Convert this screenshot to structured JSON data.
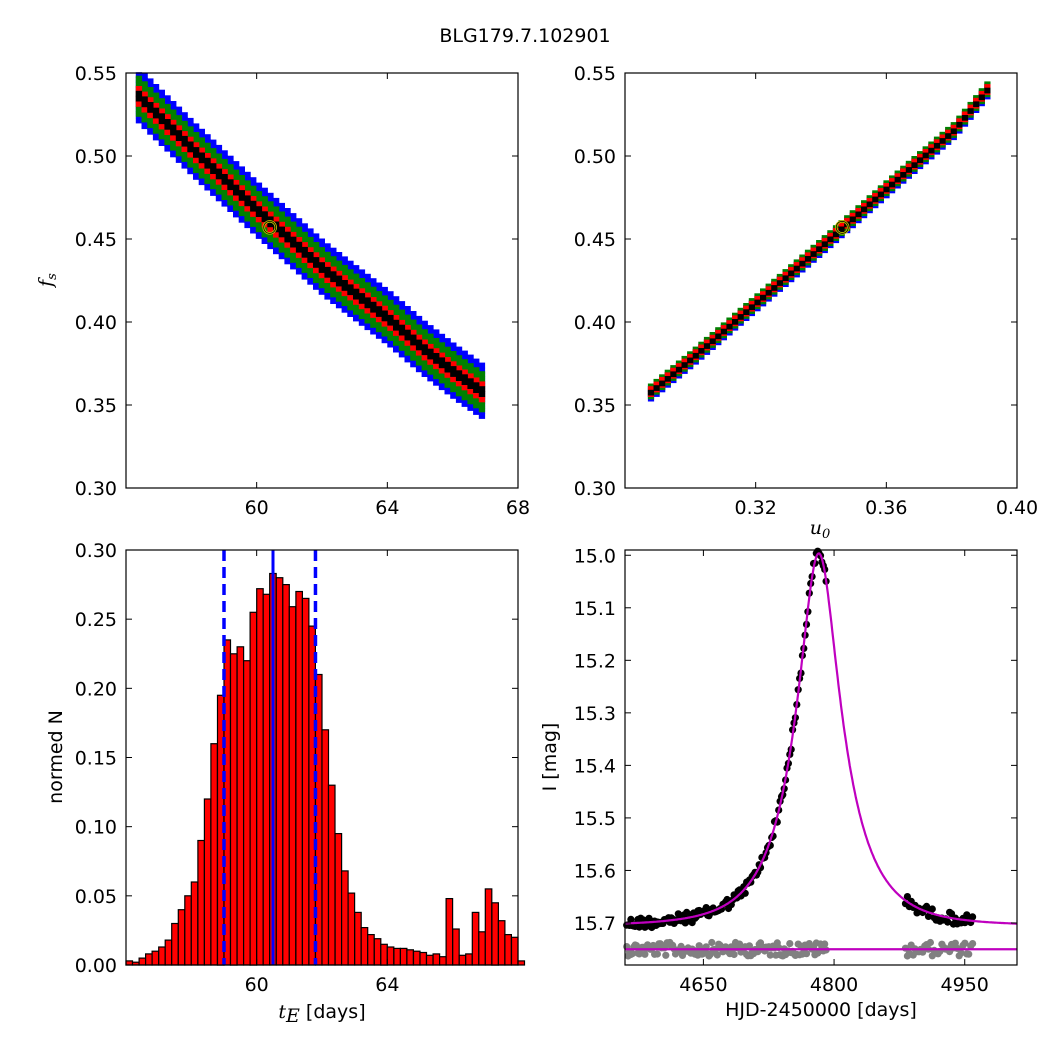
{
  "figure": {
    "title": "BLG179.7.102901"
  },
  "colors": {
    "level1": "#0000ff",
    "level2": "#008000",
    "level3": "#ff0000",
    "level4": "#000000",
    "best_fit_marker": "#bfbf00",
    "hist_bar": "#ff0000",
    "hist_edge": "#000000",
    "median_line": "#0000ff",
    "model_line": "#bf00bf",
    "data_points": "#000000",
    "residual_points": "#808080"
  },
  "chart_data": [
    {
      "id": "tE_vs_fs",
      "type": "heatmap",
      "xlabel": "",
      "ylabel": "f_s",
      "xlim": [
        56,
        68
      ],
      "ylim": [
        0.3,
        0.55
      ],
      "x_ticks": [
        "60",
        "64",
        "68"
      ],
      "y_ticks": [
        "0.30",
        "0.35",
        "0.40",
        "0.45",
        "0.50",
        "0.55"
      ],
      "band": {
        "points": [
          [
            56.3,
            0.536
          ],
          [
            58,
            0.503
          ],
          [
            60,
            0.466
          ],
          [
            62,
            0.431
          ],
          [
            64,
            0.401
          ],
          [
            65,
            0.384
          ],
          [
            66,
            0.369
          ],
          [
            66.8,
            0.358
          ]
        ],
        "levels": [
          {
            "name": "level1",
            "half_width": 0.016
          },
          {
            "name": "level2",
            "half_width": 0.012
          },
          {
            "name": "level3",
            "half_width": 0.006
          },
          {
            "name": "level4",
            "half_width": 0.0028
          }
        ]
      },
      "best_fit": {
        "x": 60.4,
        "y": 0.457
      }
    },
    {
      "id": "u0_vs_fs",
      "type": "heatmap",
      "xlabel": "u_0",
      "ylabel": "",
      "xlim": [
        0.28,
        0.4
      ],
      "ylim": [
        0.3,
        0.55
      ],
      "x_ticks": [
        "0.32",
        "0.36",
        "0.40"
      ],
      "y_ticks": [
        "0.30",
        "0.35",
        "0.40",
        "0.45",
        "0.50",
        "0.55"
      ],
      "band": {
        "points": [
          [
            0.287,
            0.357
          ],
          [
            0.3,
            0.378
          ],
          [
            0.32,
            0.412
          ],
          [
            0.34,
            0.446
          ],
          [
            0.36,
            0.481
          ],
          [
            0.38,
            0.515
          ],
          [
            0.39,
            0.539
          ]
        ],
        "levels": [
          {
            "name": "level1",
            "half_width": 0.0045
          },
          {
            "name": "level2",
            "half_width": 0.0032
          },
          {
            "name": "level3",
            "half_width": 0.0018
          },
          {
            "name": "level4",
            "half_width": 0.0009
          }
        ]
      },
      "best_fit": {
        "x": 0.3465,
        "y": 0.457
      }
    },
    {
      "id": "tE_histogram",
      "type": "bar",
      "xlabel": "t_E [days]",
      "ylabel": "normed N",
      "xlim": [
        56,
        68
      ],
      "ylim": [
        0.0,
        0.3
      ],
      "x_ticks": [
        "60",
        "64"
      ],
      "y_ticks": [
        "0.00",
        "0.05",
        "0.10",
        "0.15",
        "0.20",
        "0.25",
        "0.30"
      ],
      "bin_start": 56.0,
      "bin_width": 0.2,
      "values": [
        0.003,
        0.002,
        0.005,
        0.008,
        0.01,
        0.013,
        0.018,
        0.03,
        0.04,
        0.05,
        0.06,
        0.09,
        0.12,
        0.16,
        0.195,
        0.235,
        0.225,
        0.23,
        0.22,
        0.255,
        0.272,
        0.268,
        0.283,
        0.28,
        0.275,
        0.259,
        0.27,
        0.265,
        0.245,
        0.21,
        0.17,
        0.13,
        0.095,
        0.068,
        0.052,
        0.038,
        0.027,
        0.022,
        0.019,
        0.015,
        0.013,
        0.012,
        0.012,
        0.011,
        0.01,
        0.009,
        0.007,
        0.008,
        0.006,
        0.048,
        0.026,
        0.007,
        0.008,
        0.038,
        0.024,
        0.055,
        0.045,
        0.032,
        0.022,
        0.02,
        0.003
      ],
      "median": 60.5,
      "lower_bound": 59.0,
      "upper_bound": 61.8
    },
    {
      "id": "light_curve",
      "type": "scatter",
      "xlabel": "HJD-2450000 [days]",
      "ylabel": "I [mag]",
      "xlim": [
        4560,
        5010
      ],
      "ylim": [
        15.78,
        14.99
      ],
      "x_ticks": [
        "4650",
        "4800",
        "4950"
      ],
      "y_ticks": [
        "15.0",
        "15.1",
        "15.2",
        "15.3",
        "15.4",
        "15.5",
        "15.6",
        "15.7"
      ],
      "model": {
        "t0": 4782.5,
        "u0": 0.3465,
        "tE": 60.4,
        "fs": 0.457,
        "I_base": 15.705
      },
      "baseline_mag": 15.75,
      "data_segments": [
        {
          "from": 4562,
          "to": 4792,
          "step": 1.6
        },
        {
          "from": 4882,
          "to": 4960,
          "step": 2.2
        }
      ]
    }
  ]
}
